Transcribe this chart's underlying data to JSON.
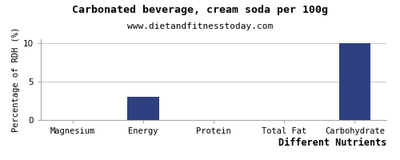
{
  "categories": [
    "Magnesium",
    "Energy",
    "Protein",
    "Total Fat",
    "Carbohydrate"
  ],
  "values": [
    0,
    3,
    0,
    0,
    10
  ],
  "bar_color": "#2e4080",
  "title": "Carbonated beverage, cream soda per 100g",
  "subtitle": "www.dietandfitnesstoday.com",
  "ylabel": "Percentage of RDH (%)",
  "xlabel": "Different Nutrients",
  "ylim": [
    0,
    10.5
  ],
  "yticks": [
    0,
    5,
    10
  ],
  "background_color": "#ffffff",
  "title_fontsize": 9.5,
  "subtitle_fontsize": 8,
  "ylabel_fontsize": 7.5,
  "xlabel_fontsize": 8.5,
  "tick_fontsize": 7.5,
  "bar_width": 0.45
}
